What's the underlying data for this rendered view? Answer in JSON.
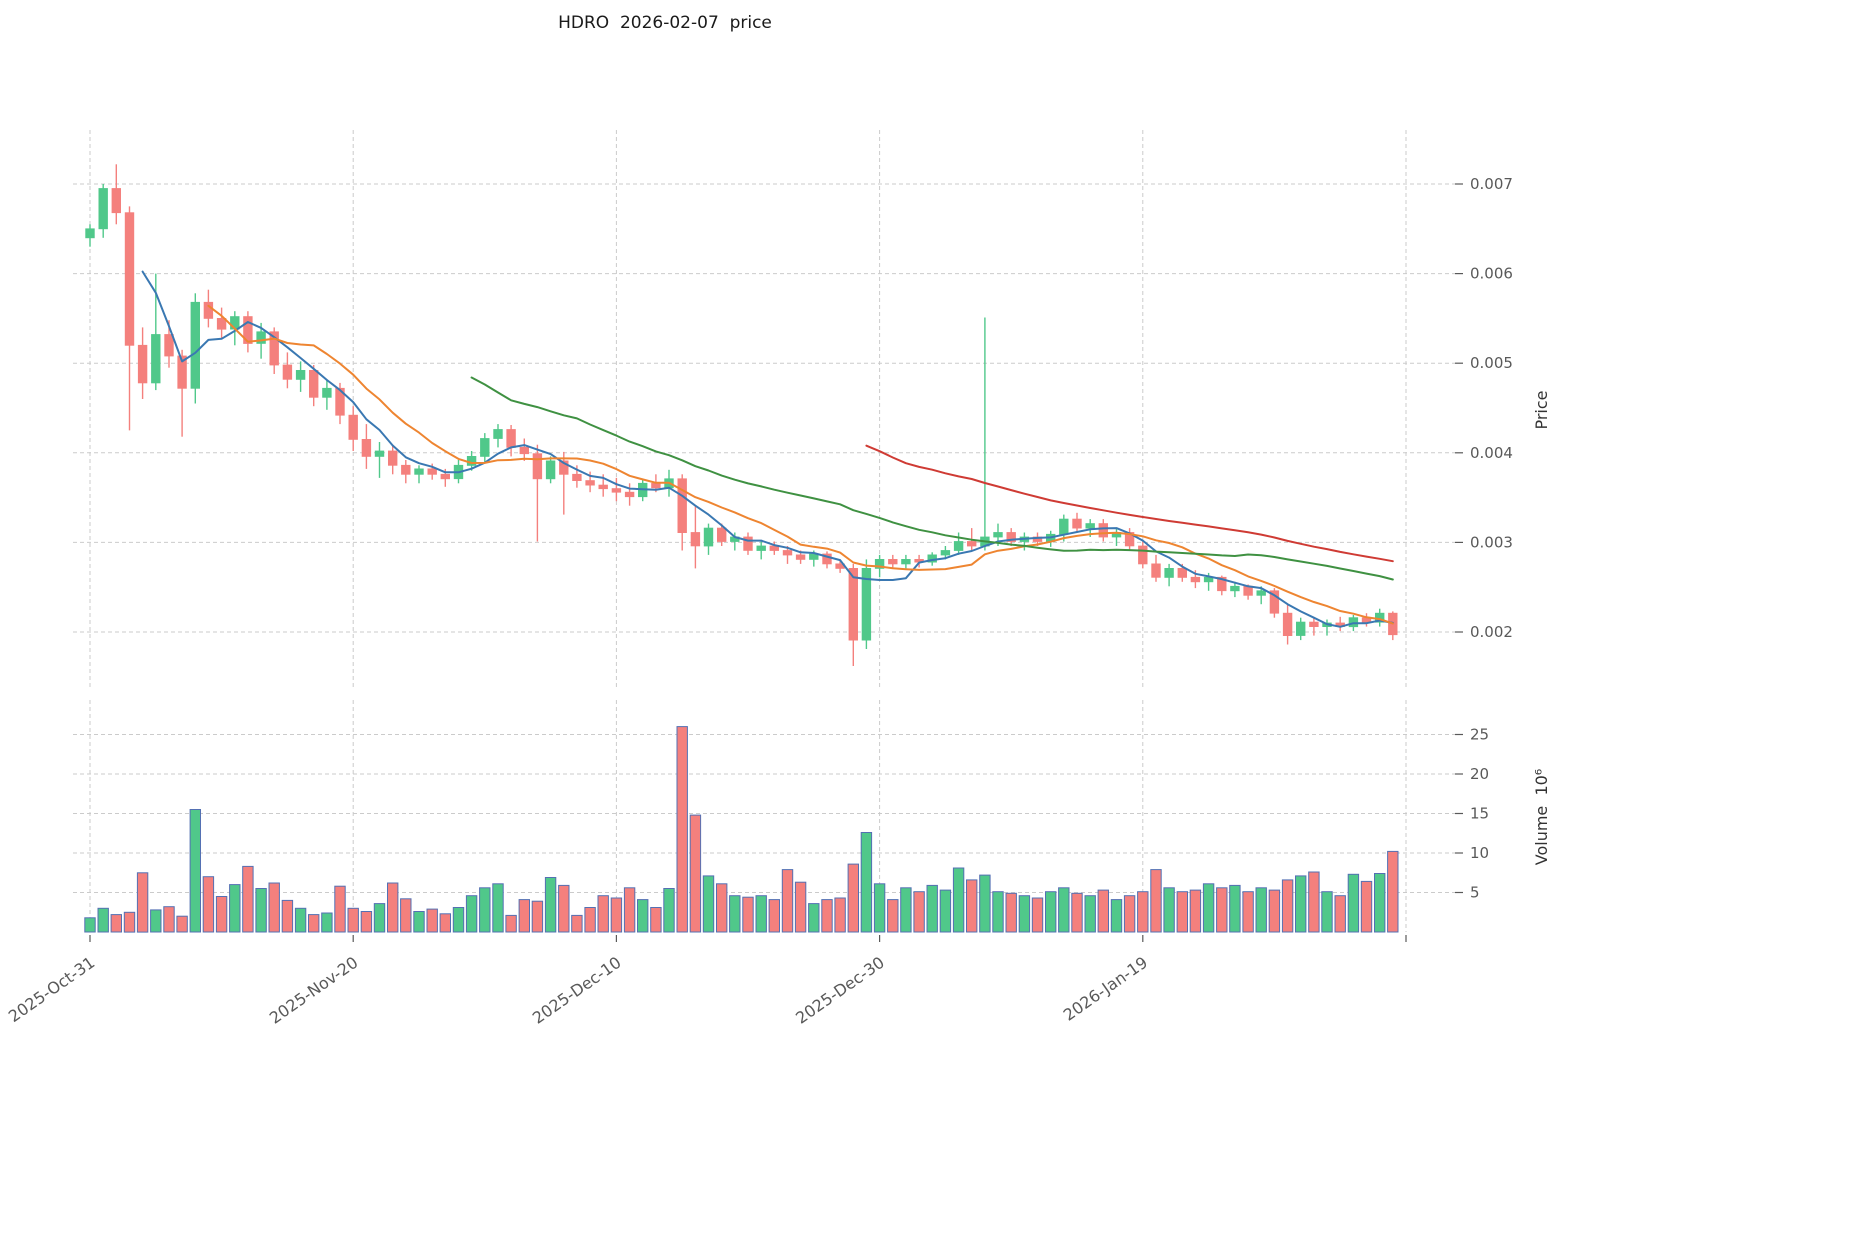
{
  "title": "HDRO  2026-02-07  price",
  "chart_data": {
    "type": "candlestick",
    "symbol": "HDRO",
    "as_of_date": "2026-02-07",
    "title": "HDRO  2026-02-07  price",
    "legend_position": "none",
    "grid": true,
    "price_axis": {
      "label": "Price",
      "side": "right",
      "tick_values": [
        0.002,
        0.003,
        0.004,
        0.005,
        0.006,
        0.007
      ],
      "tick_labels": [
        "0.002",
        "0.003",
        "0.004",
        "0.005",
        "0.006",
        "0.007"
      ],
      "range": [
        0.0014,
        0.0076
      ]
    },
    "volume_axis": {
      "label": "Volume  10⁶",
      "side": "right",
      "unit": "millions",
      "tick_values": [
        5,
        10,
        15,
        20,
        25
      ],
      "tick_labels": [
        "5",
        "10",
        "15",
        "20",
        "25"
      ],
      "range": [
        0,
        29
      ]
    },
    "x_axis": {
      "tick_labels": [
        "2025-Oct-31",
        "2025-Nov-20",
        "2025-Dec-10",
        "2025-Dec-30",
        "2026-Jan-19"
      ],
      "tick_indices": [
        0,
        20,
        40,
        60,
        80
      ],
      "gridline_indices": [
        0,
        20,
        40,
        60,
        80,
        100
      ]
    },
    "moving_averages": [
      {
        "window": 5,
        "color": "#3a78b2"
      },
      {
        "window": 10,
        "color": "#ee8531"
      },
      {
        "window": 30,
        "color": "#3f9142"
      },
      {
        "window": 60,
        "color": "#cf3b34"
      }
    ],
    "colors": {
      "up": "#50c88a",
      "down": "#f4807d",
      "volume_edge": "#5470b3",
      "grid": "#cbcbcb",
      "tick_text": "#595959",
      "title_text": "#1a1a1a"
    },
    "ohlcv_columns": [
      "open",
      "high",
      "low",
      "close",
      "volume_millions"
    ],
    "ohlcv": [
      [
        0.0064,
        0.00655,
        0.0063,
        0.0065,
        1.8
      ],
      [
        0.0065,
        0.007,
        0.0064,
        0.00695,
        3.0
      ],
      [
        0.00695,
        0.00722,
        0.00655,
        0.00668,
        2.2
      ],
      [
        0.00668,
        0.00675,
        0.00425,
        0.0052,
        2.5
      ],
      [
        0.0052,
        0.0054,
        0.0046,
        0.00478,
        7.5
      ],
      [
        0.00478,
        0.006,
        0.0047,
        0.00532,
        2.8
      ],
      [
        0.00532,
        0.00548,
        0.00495,
        0.00508,
        3.2
      ],
      [
        0.00508,
        0.00515,
        0.00418,
        0.00472,
        2.0
      ],
      [
        0.00472,
        0.00578,
        0.00455,
        0.00568,
        15.5
      ],
      [
        0.00568,
        0.00582,
        0.0054,
        0.0055,
        7.0
      ],
      [
        0.0055,
        0.00562,
        0.00528,
        0.00538,
        4.5
      ],
      [
        0.00538,
        0.00558,
        0.0052,
        0.00552,
        6.0
      ],
      [
        0.00552,
        0.00558,
        0.00512,
        0.00522,
        8.3
      ],
      [
        0.00522,
        0.00545,
        0.00505,
        0.00535,
        5.5
      ],
      [
        0.00535,
        0.0054,
        0.00488,
        0.00498,
        6.2
      ],
      [
        0.00498,
        0.00512,
        0.00472,
        0.00482,
        4.0
      ],
      [
        0.00482,
        0.00502,
        0.00468,
        0.00492,
        3.0
      ],
      [
        0.00492,
        0.00498,
        0.00452,
        0.00462,
        2.2
      ],
      [
        0.00462,
        0.00482,
        0.00448,
        0.00472,
        2.4
      ],
      [
        0.00472,
        0.00478,
        0.00432,
        0.00442,
        5.8
      ],
      [
        0.00442,
        0.00452,
        0.00402,
        0.00415,
        3.0
      ],
      [
        0.00415,
        0.00432,
        0.00382,
        0.00396,
        2.6
      ],
      [
        0.00396,
        0.00412,
        0.00372,
        0.00402,
        3.6
      ],
      [
        0.00402,
        0.00408,
        0.00376,
        0.00386,
        6.2
      ],
      [
        0.00386,
        0.00392,
        0.00366,
        0.00376,
        4.2
      ],
      [
        0.00376,
        0.00386,
        0.00366,
        0.00382,
        2.6
      ],
      [
        0.00382,
        0.00388,
        0.0037,
        0.00376,
        2.9
      ],
      [
        0.00376,
        0.00382,
        0.00362,
        0.00371,
        2.3
      ],
      [
        0.00371,
        0.00392,
        0.00366,
        0.00386,
        3.1
      ],
      [
        0.00386,
        0.00402,
        0.0038,
        0.00396,
        4.6
      ],
      [
        0.00396,
        0.00422,
        0.0039,
        0.00416,
        5.6
      ],
      [
        0.00416,
        0.00432,
        0.00406,
        0.00426,
        6.1
      ],
      [
        0.00426,
        0.00431,
        0.00396,
        0.00406,
        2.1
      ],
      [
        0.00406,
        0.00416,
        0.00391,
        0.00399,
        4.1
      ],
      [
        0.00399,
        0.00409,
        0.00301,
        0.00371,
        3.9
      ],
      [
        0.00371,
        0.00396,
        0.00366,
        0.00391,
        6.9
      ],
      [
        0.00391,
        0.00401,
        0.00331,
        0.00376,
        5.9
      ],
      [
        0.00376,
        0.00386,
        0.00361,
        0.00369,
        2.1
      ],
      [
        0.00369,
        0.00379,
        0.00356,
        0.00364,
        3.1
      ],
      [
        0.00364,
        0.00376,
        0.00351,
        0.0036,
        4.6
      ],
      [
        0.0036,
        0.00372,
        0.00346,
        0.00356,
        4.3
      ],
      [
        0.00356,
        0.00366,
        0.00341,
        0.00351,
        5.6
      ],
      [
        0.00351,
        0.00371,
        0.00346,
        0.00366,
        4.1
      ],
      [
        0.00366,
        0.00376,
        0.00356,
        0.00361,
        3.1
      ],
      [
        0.00361,
        0.00381,
        0.00351,
        0.00371,
        5.5
      ],
      [
        0.00371,
        0.00376,
        0.00291,
        0.00311,
        26.0
      ],
      [
        0.00311,
        0.00341,
        0.00271,
        0.00296,
        14.8
      ],
      [
        0.00296,
        0.00321,
        0.00286,
        0.00316,
        7.1
      ],
      [
        0.00316,
        0.00321,
        0.00296,
        0.00301,
        6.1
      ],
      [
        0.00301,
        0.00311,
        0.00291,
        0.00306,
        4.6
      ],
      [
        0.00306,
        0.00311,
        0.00286,
        0.00291,
        4.4
      ],
      [
        0.00291,
        0.00301,
        0.00281,
        0.00296,
        4.6
      ],
      [
        0.00296,
        0.00301,
        0.00286,
        0.00291,
        4.1
      ],
      [
        0.00291,
        0.00296,
        0.00276,
        0.00286,
        7.9
      ],
      [
        0.00286,
        0.00291,
        0.00276,
        0.00281,
        6.3
      ],
      [
        0.00281,
        0.00291,
        0.00273,
        0.00287,
        3.6
      ],
      [
        0.00287,
        0.0029,
        0.00271,
        0.00276,
        4.1
      ],
      [
        0.00276,
        0.00281,
        0.00266,
        0.00271,
        4.3
      ],
      [
        0.00271,
        0.00276,
        0.00162,
        0.00191,
        8.6
      ],
      [
        0.00191,
        0.00281,
        0.00181,
        0.00271,
        12.6
      ],
      [
        0.00271,
        0.00286,
        0.00261,
        0.00281,
        6.1
      ],
      [
        0.00281,
        0.00286,
        0.00271,
        0.00276,
        4.1
      ],
      [
        0.00276,
        0.00286,
        0.00271,
        0.00281,
        5.6
      ],
      [
        0.00281,
        0.00286,
        0.00272,
        0.00278,
        5.1
      ],
      [
        0.00278,
        0.00289,
        0.00274,
        0.00286,
        5.9
      ],
      [
        0.00286,
        0.00296,
        0.00281,
        0.00291,
        5.3
      ],
      [
        0.00291,
        0.00311,
        0.00286,
        0.00301,
        8.1
      ],
      [
        0.00301,
        0.00316,
        0.00291,
        0.00296,
        6.6
      ],
      [
        0.00296,
        0.00551,
        0.00291,
        0.00306,
        7.2
      ],
      [
        0.00306,
        0.00321,
        0.00296,
        0.00311,
        5.1
      ],
      [
        0.00311,
        0.00316,
        0.00296,
        0.00301,
        4.9
      ],
      [
        0.00301,
        0.00311,
        0.00291,
        0.00306,
        4.6
      ],
      [
        0.00306,
        0.00311,
        0.00296,
        0.00301,
        4.3
      ],
      [
        0.00301,
        0.00313,
        0.00295,
        0.00309,
        5.1
      ],
      [
        0.00309,
        0.00331,
        0.00301,
        0.00326,
        5.6
      ],
      [
        0.00326,
        0.00333,
        0.00311,
        0.00316,
        4.9
      ],
      [
        0.00316,
        0.00326,
        0.00306,
        0.00321,
        4.6
      ],
      [
        0.00321,
        0.00326,
        0.00301,
        0.00306,
        5.3
      ],
      [
        0.00306,
        0.00316,
        0.00296,
        0.00311,
        4.1
      ],
      [
        0.00311,
        0.00316,
        0.00291,
        0.00296,
        4.6
      ],
      [
        0.00296,
        0.00301,
        0.00271,
        0.00276,
        5.1
      ],
      [
        0.00276,
        0.00286,
        0.00256,
        0.00261,
        7.9
      ],
      [
        0.00261,
        0.00276,
        0.00251,
        0.00271,
        5.6
      ],
      [
        0.00271,
        0.00276,
        0.00256,
        0.00261,
        5.1
      ],
      [
        0.00261,
        0.00269,
        0.00249,
        0.00256,
        5.3
      ],
      [
        0.00256,
        0.00266,
        0.00246,
        0.00261,
        6.1
      ],
      [
        0.00261,
        0.00263,
        0.00241,
        0.00246,
        5.6
      ],
      [
        0.00246,
        0.00256,
        0.00239,
        0.00251,
        5.9
      ],
      [
        0.00251,
        0.00253,
        0.00236,
        0.00241,
        5.1
      ],
      [
        0.00241,
        0.00251,
        0.00231,
        0.00246,
        5.6
      ],
      [
        0.00246,
        0.00249,
        0.00216,
        0.00221,
        5.3
      ],
      [
        0.00221,
        0.00231,
        0.00186,
        0.00196,
        6.6
      ],
      [
        0.00196,
        0.00216,
        0.00191,
        0.00211,
        7.1
      ],
      [
        0.00211,
        0.00216,
        0.00196,
        0.00206,
        7.6
      ],
      [
        0.00206,
        0.00214,
        0.00196,
        0.0021,
        5.1
      ],
      [
        0.0021,
        0.00217,
        0.00201,
        0.00206,
        4.6
      ],
      [
        0.00206,
        0.00219,
        0.00201,
        0.00216,
        7.3
      ],
      [
        0.00216,
        0.00221,
        0.00206,
        0.00211,
        6.4
      ],
      [
        0.00211,
        0.00226,
        0.00206,
        0.00221,
        7.4
      ],
      [
        0.00221,
        0.00223,
        0.00191,
        0.00197,
        10.2
      ]
    ]
  }
}
